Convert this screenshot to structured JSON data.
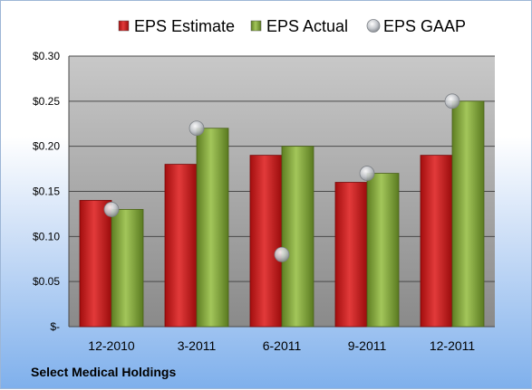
{
  "company": "Select Medical Holdings",
  "chart_data": {
    "type": "bar",
    "categories": [
      "12-2010",
      "3-2011",
      "6-2011",
      "9-2011",
      "12-2011"
    ],
    "series": [
      {
        "name": "EPS Estimate",
        "kind": "bar",
        "color": "#cc1a1a",
        "values": [
          0.14,
          0.18,
          0.19,
          0.16,
          0.19
        ]
      },
      {
        "name": "EPS Actual",
        "kind": "bar",
        "color": "#7fa33a",
        "values": [
          0.13,
          0.22,
          0.2,
          0.17,
          0.25
        ]
      },
      {
        "name": "EPS GAAP",
        "kind": "marker",
        "color": "#b8bcc4",
        "values": [
          0.13,
          0.22,
          0.08,
          0.17,
          0.25
        ]
      }
    ],
    "y_ticks": [
      "$-",
      "$0.05",
      "$0.10",
      "$0.15",
      "$0.20",
      "$0.25",
      "$0.30"
    ],
    "ylim": [
      0,
      0.3
    ],
    "legend_position": "top",
    "grid": true
  }
}
